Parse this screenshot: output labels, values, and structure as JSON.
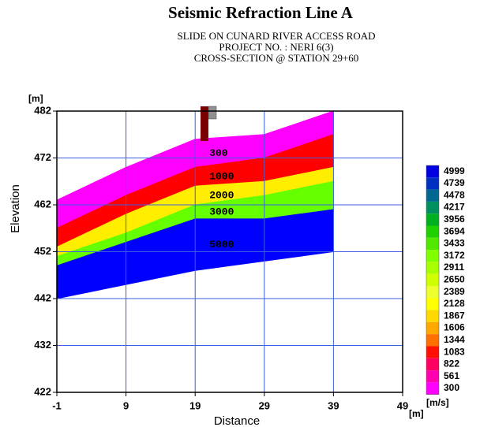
{
  "chart_data": {
    "type": "area",
    "title": "Seismic Refraction Line A",
    "subtitle": [
      "SLIDE ON CUNARD RIVER ACCESS ROAD",
      "PROJECT NO. : NERI 6(3)",
      "CROSS-SECTION @ STATION 29+60"
    ],
    "xlabel": "Distance",
    "ylabel": "Elevation",
    "x_unit": "[m]",
    "y_unit": "[m]",
    "xlim": [
      -1,
      49
    ],
    "ylim": [
      422,
      482
    ],
    "xticks": [
      -1,
      9,
      19,
      29,
      39,
      49
    ],
    "yticks": [
      422,
      432,
      442,
      452,
      462,
      472,
      482
    ],
    "grid": true,
    "grid_color": "#3b5fe0",
    "x": [
      -1,
      9,
      19,
      29,
      39
    ],
    "series": [
      {
        "name": "300",
        "color": "#ff00ff",
        "top": [
          463,
          470,
          476,
          477,
          482
        ],
        "bottom": [
          457,
          464,
          470,
          472,
          477
        ]
      },
      {
        "name": "1000",
        "color": "#ff0000",
        "top": [
          457,
          464,
          470,
          472,
          477
        ],
        "bottom": [
          453,
          460,
          466,
          467,
          470
        ]
      },
      {
        "name": "2000",
        "color": "#ffee00",
        "top": [
          453,
          460,
          466,
          467,
          470
        ],
        "bottom": [
          451,
          456,
          462,
          464,
          467
        ]
      },
      {
        "name": "3000",
        "color": "#66ff00",
        "top": [
          451,
          456,
          462,
          464,
          467
        ],
        "bottom": [
          449,
          454,
          459,
          459,
          461
        ]
      },
      {
        "name": "5000",
        "color": "#0000ff",
        "top": [
          449,
          454,
          459,
          459,
          461
        ],
        "bottom": [
          442,
          445,
          448,
          450,
          452
        ]
      }
    ],
    "colorbar": {
      "unit": "[m/s]",
      "labels": [
        4999,
        4739,
        4478,
        4217,
        3956,
        3694,
        3433,
        3172,
        2911,
        2650,
        2389,
        2128,
        1867,
        1606,
        1344,
        1083,
        822,
        561,
        300
      ],
      "colors": [
        "#0000e0",
        "#0030c0",
        "#006890",
        "#009060",
        "#00b020",
        "#20d000",
        "#50e800",
        "#80ff00",
        "#a8ff00",
        "#d0ff00",
        "#eeff30",
        "#ffff00",
        "#ffd800",
        "#ffa800",
        "#ff7000",
        "#ff1000",
        "#ff0060",
        "#ff00b0",
        "#ff00ff"
      ]
    }
  }
}
